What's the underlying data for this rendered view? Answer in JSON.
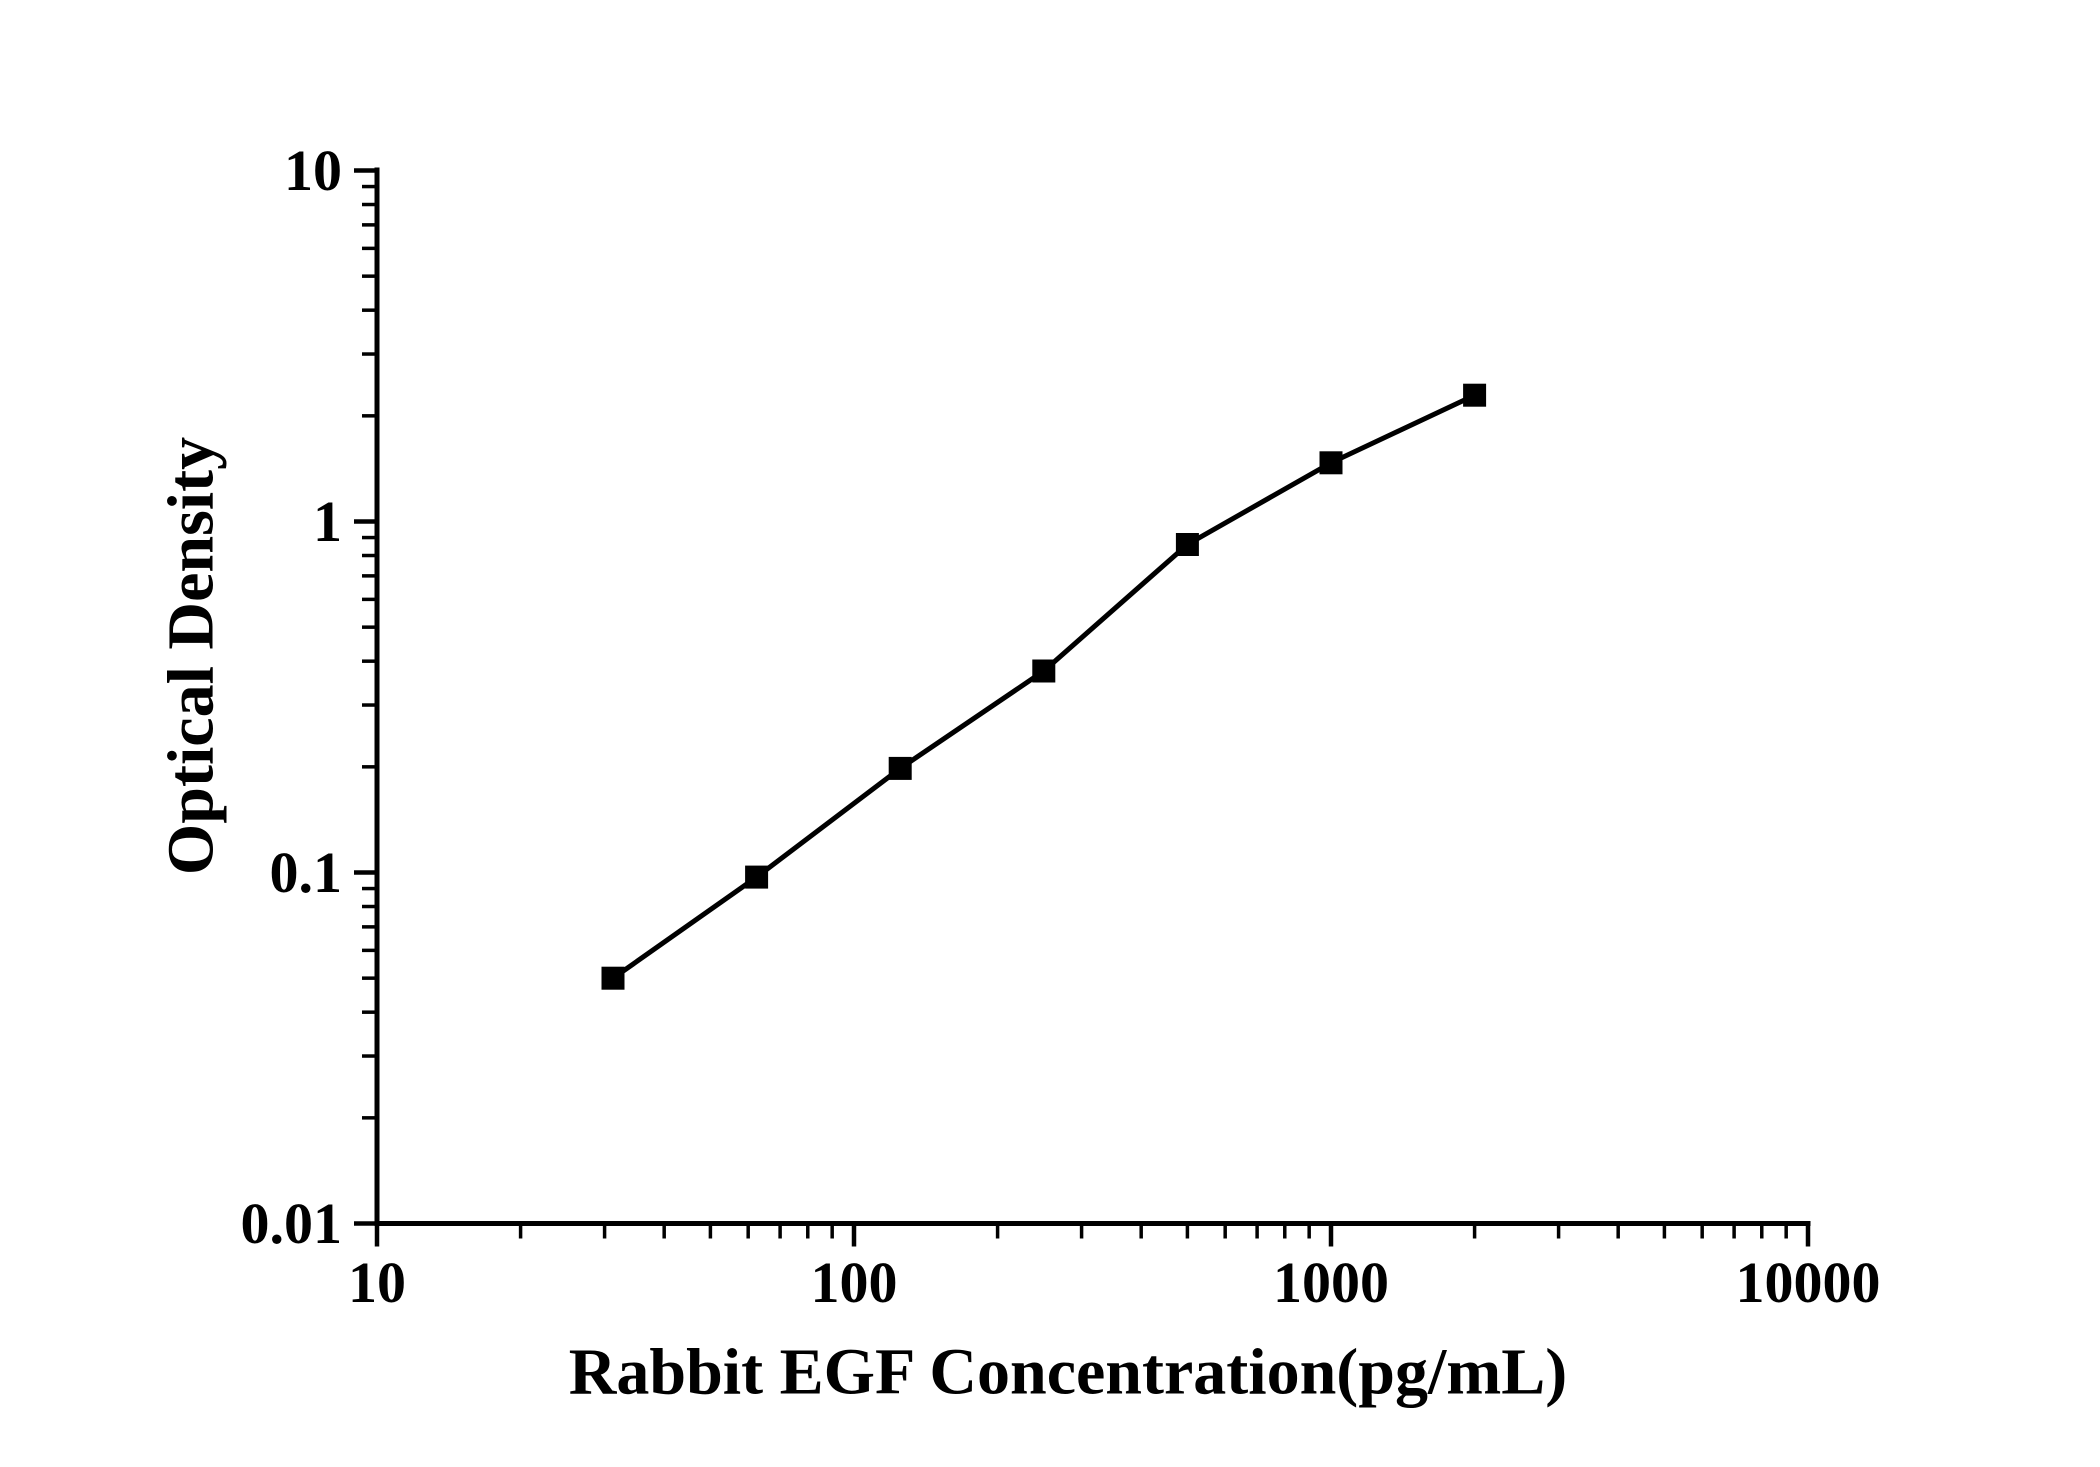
{
  "colors": {
    "background": "#ffffff",
    "ink": "#000000"
  },
  "chart_data": {
    "type": "line",
    "title": "",
    "xlabel": "Rabbit EGF Concentration(pg/mL)",
    "ylabel": "Optical Density",
    "x_scale": "log",
    "y_scale": "log",
    "xlim": [
      10,
      10000
    ],
    "ylim": [
      0.01,
      10
    ],
    "x_ticks": [
      10,
      100,
      1000,
      10000
    ],
    "x_tick_labels": [
      "10",
      "100",
      "1000",
      "10000"
    ],
    "y_ticks": [
      10,
      1,
      0.1,
      0.01
    ],
    "y_tick_labels": [
      "10",
      "1",
      "0.1",
      "0.01"
    ],
    "minor_tick_pattern": "log multiples 2-9 per decade, outward",
    "grid": false,
    "legend": null,
    "series": [
      {
        "name": "Rabbit EGF standard curve",
        "marker": "filled-square",
        "color": "#000000",
        "points": [
          {
            "x": 31.25,
            "y": 0.05
          },
          {
            "x": 62.5,
            "y": 0.097
          },
          {
            "x": 125,
            "y": 0.198
          },
          {
            "x": 250,
            "y": 0.375
          },
          {
            "x": 500,
            "y": 0.86
          },
          {
            "x": 1000,
            "y": 1.47
          },
          {
            "x": 2000,
            "y": 2.29
          }
        ]
      }
    ]
  }
}
